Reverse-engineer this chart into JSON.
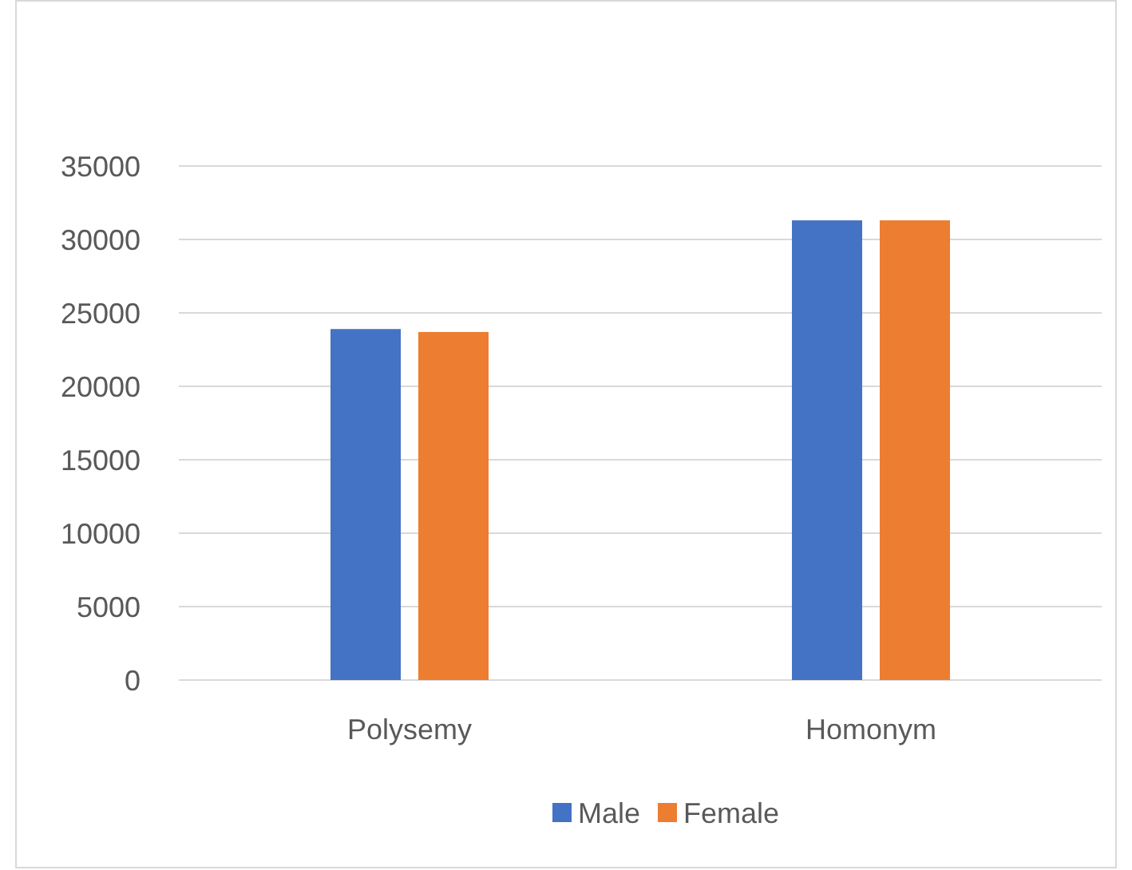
{
  "chart_data": {
    "type": "bar",
    "categories": [
      "Polysemy",
      "Homonym"
    ],
    "series": [
      {
        "name": "Male",
        "color": "#4472c4",
        "values": [
          23900,
          31300
        ]
      },
      {
        "name": "Female",
        "color": "#ed7d31",
        "values": [
          23700,
          31300
        ]
      }
    ],
    "ylim": [
      0,
      35000
    ],
    "yticks": [
      0,
      5000,
      10000,
      15000,
      20000,
      25000,
      30000,
      35000
    ],
    "grid": "y",
    "legend": "bottom"
  }
}
